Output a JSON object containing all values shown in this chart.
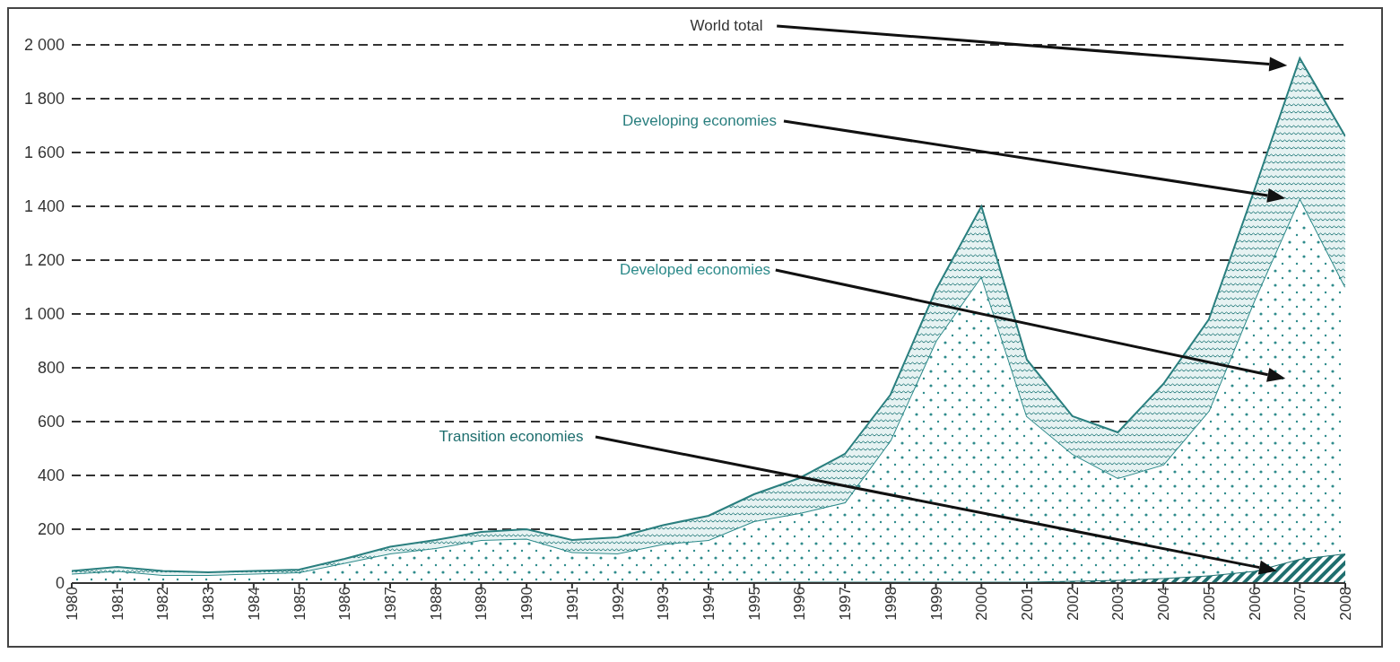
{
  "chart_data": {
    "type": "area",
    "stacked": true,
    "x": [
      1980,
      1981,
      1982,
      1983,
      1984,
      1985,
      1986,
      1987,
      1988,
      1989,
      1990,
      1991,
      1992,
      1993,
      1994,
      1995,
      1996,
      1997,
      1998,
      1999,
      2000,
      2001,
      2002,
      2003,
      2004,
      2005,
      2006,
      2007,
      2008
    ],
    "series": [
      {
        "name": "Transition economies",
        "color": "#1f6f6f",
        "values": [
          0,
          0,
          0,
          0,
          0,
          0,
          0,
          0,
          0,
          0,
          0,
          0,
          2,
          3,
          3,
          4,
          5,
          5,
          5,
          5,
          5,
          5,
          8,
          12,
          18,
          28,
          45,
          90,
          110
        ]
      },
      {
        "name": "Developed economies",
        "color": "#2e8b8b",
        "values": [
          35,
          45,
          30,
          30,
          35,
          40,
          75,
          110,
          130,
          160,
          165,
          115,
          108,
          142,
          157,
          226,
          255,
          295,
          525,
          895,
          1135,
          615,
          472,
          378,
          422,
          612,
          1005,
          1340,
          990
        ]
      },
      {
        "name": "Developing economies",
        "color": "#2a7f7f",
        "values": [
          10,
          15,
          15,
          10,
          10,
          10,
          15,
          25,
          30,
          30,
          35,
          45,
          60,
          70,
          90,
          100,
          130,
          180,
          170,
          190,
          260,
          210,
          140,
          170,
          300,
          340,
          410,
          520,
          560
        ]
      }
    ],
    "annotations": [
      "World total"
    ],
    "xlim": [
      1980,
      2008
    ],
    "xticks": [
      1980,
      1981,
      1982,
      1983,
      1984,
      1985,
      1986,
      1987,
      1988,
      1989,
      1990,
      1991,
      1992,
      1993,
      1994,
      1995,
      1996,
      1997,
      1998,
      1999,
      2000,
      2001,
      2002,
      2003,
      2004,
      2005,
      2006,
      2007,
      2008
    ],
    "ylim": [
      0,
      2000
    ],
    "yticks": [
      0,
      200,
      400,
      600,
      800,
      {
        "value": 1000,
        "label": "1 000"
      },
      {
        "value": 1200,
        "label": "1 200"
      },
      {
        "value": 1400,
        "label": "1 400"
      },
      {
        "value": 1600,
        "label": "1 600"
      },
      {
        "value": 1800,
        "label": "1 800"
      },
      {
        "value": 2000,
        "label": "2 000"
      }
    ],
    "grid": "y",
    "legend": false
  }
}
